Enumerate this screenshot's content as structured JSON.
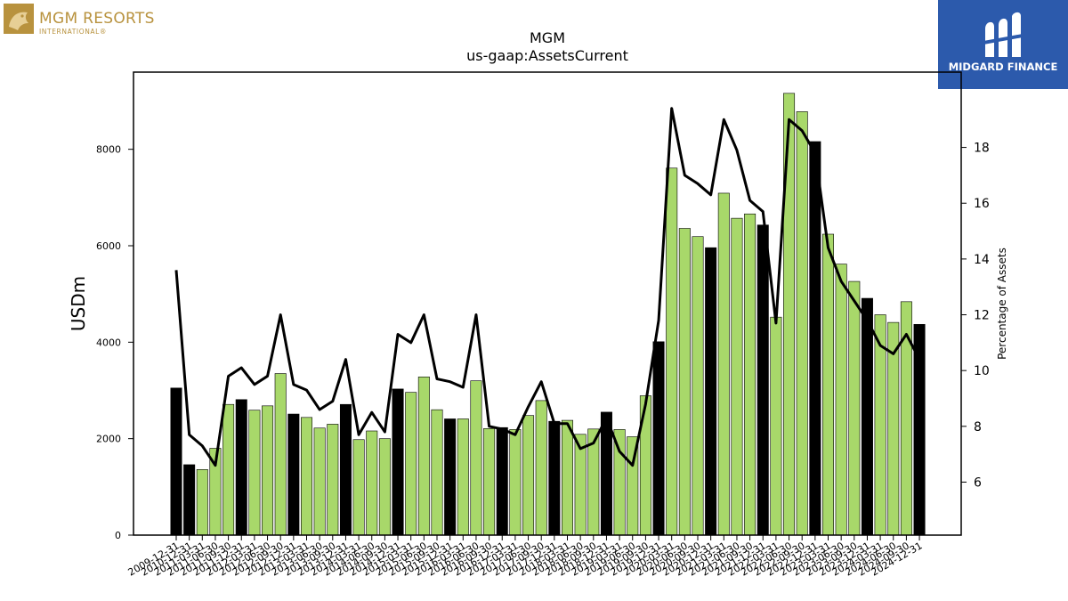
{
  "brand_left": {
    "name": "MGM RESORTS",
    "sub": "INTERNATIONAL®",
    "color": "#b8923e"
  },
  "brand_right": {
    "name": "MIDGARD FINANCE",
    "bg": "#2c5aac"
  },
  "chart_data": {
    "type": "bar",
    "title": "MGM",
    "subtitle": "us-gaap:AssetsCurrent",
    "ylabel": "USDm",
    "y2label": "Percentage of Assets",
    "ylim": [
      0,
      9600
    ],
    "y2lim": [
      4.1,
      20.7
    ],
    "yticks": [
      0,
      2000,
      4000,
      6000,
      8000
    ],
    "y2ticks": [
      6,
      8,
      10,
      12,
      14,
      16,
      18
    ],
    "bar_colors": {
      "annual": "#000000",
      "quarterly": "#a8d86a"
    },
    "line_color": "#000000",
    "categories": [
      "2009-12-31",
      "2010-12-31",
      "2011-03-31",
      "2011-06-30",
      "2011-09-30",
      "2011-12-31",
      "2012-03-31",
      "2012-06-30",
      "2012-09-30",
      "2012-12-31",
      "2013-03-31",
      "2013-06-30",
      "2013-09-30",
      "2013-12-31",
      "2014-03-31",
      "2014-06-30",
      "2014-09-30",
      "2014-12-31",
      "2015-03-31",
      "2015-06-30",
      "2015-09-30",
      "2015-12-31",
      "2016-03-31",
      "2016-06-30",
      "2016-09-30",
      "2016-12-31",
      "2017-03-31",
      "2017-06-30",
      "2017-09-30",
      "2017-12-31",
      "2018-03-31",
      "2018-06-30",
      "2018-09-30",
      "2018-12-31",
      "2019-03-31",
      "2019-06-30",
      "2019-09-30",
      "2019-12-31",
      "2020-03-31",
      "2020-06-30",
      "2020-09-30",
      "2020-12-31",
      "2021-03-31",
      "2021-06-30",
      "2021-09-30",
      "2021-12-31",
      "2022-03-31",
      "2022-06-30",
      "2022-09-30",
      "2022-12-31",
      "2023-03-31",
      "2023-06-30",
      "2023-09-30",
      "2023-12-31",
      "2024-03-31",
      "2024-06-30",
      "2024-09-30",
      "2024-12-31"
    ],
    "series": [
      {
        "values": [
          3050,
          1460,
          1360,
          1800,
          2710,
          2810,
          2590,
          2680,
          3350,
          2510,
          2440,
          2220,
          2300,
          2710,
          1980,
          2160,
          2000,
          3030,
          2960,
          3280,
          2600,
          2410,
          2410,
          3200,
          2210,
          2230,
          2190,
          2480,
          2790,
          2360,
          2380,
          2090,
          2200,
          2550,
          2190,
          2040,
          2890,
          4010,
          7610,
          6360,
          6190,
          5960,
          7090,
          6570,
          6660,
          6430,
          4520,
          9160,
          8780,
          8160,
          6240,
          5620,
          5260,
          4910,
          4570,
          4410,
          4840,
          4370
        ]
      },
      {
        "values": [
          13.6,
          7.7,
          7.3,
          6.6,
          9.8,
          10.1,
          9.5,
          9.8,
          12.0,
          9.5,
          9.3,
          8.6,
          8.9,
          10.4,
          7.7,
          8.5,
          7.8,
          11.3,
          11.0,
          12.0,
          9.7,
          9.6,
          9.4,
          12.0,
          8.0,
          7.9,
          7.7,
          8.7,
          9.6,
          8.1,
          8.1,
          7.2,
          7.4,
          8.3,
          7.1,
          6.6,
          8.8,
          11.8,
          19.4,
          17.0,
          16.7,
          16.3,
          19.0,
          17.9,
          16.1,
          15.7,
          11.7,
          19.0,
          18.6,
          17.8,
          14.4,
          13.2,
          12.5,
          11.8,
          10.9,
          10.6,
          11.3,
          10.4
        ]
      }
    ]
  }
}
